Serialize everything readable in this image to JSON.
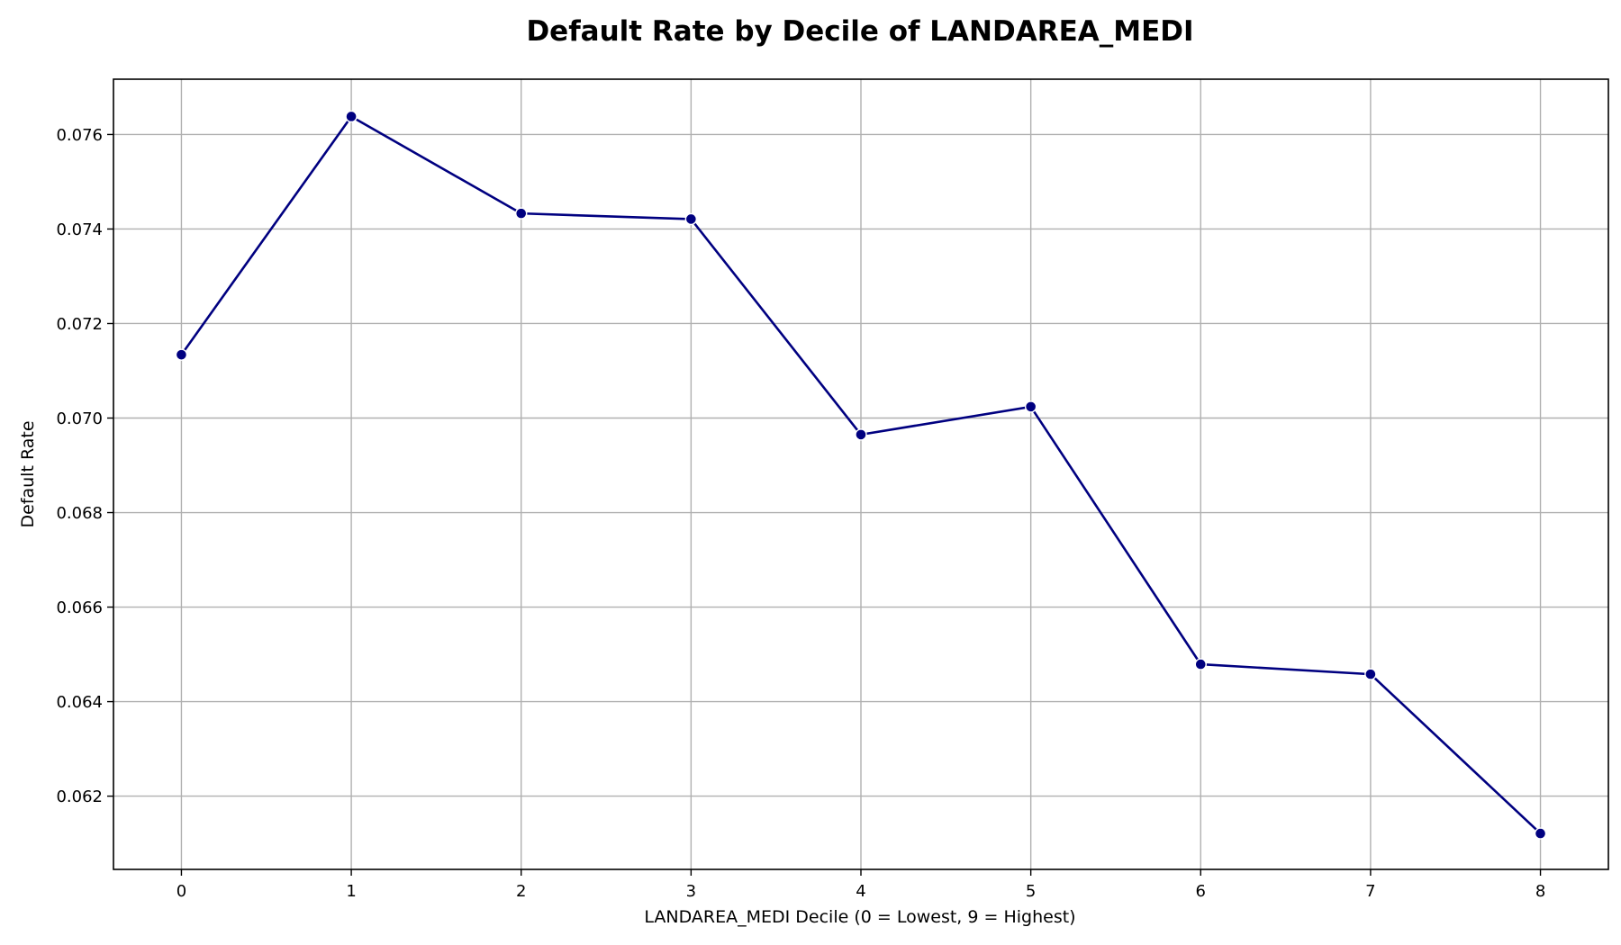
{
  "chart_data": {
    "type": "line",
    "title": "Default Rate by Decile of LANDAREA_MEDI",
    "xlabel": "LANDAREA_MEDI Decile (0 = Lowest, 9 = Highest)",
    "ylabel": "Default Rate",
    "x": [
      0,
      1,
      2,
      3,
      4,
      5,
      6,
      7,
      8
    ],
    "y": [
      0.07134,
      0.07638,
      0.07433,
      0.07421,
      0.06965,
      0.07024,
      0.06479,
      0.06458,
      0.06121
    ],
    "xlim": [
      -0.4,
      8.4
    ],
    "ylim": [
      0.06045,
      0.07717
    ],
    "xticks": [
      "0",
      "1",
      "2",
      "3",
      "4",
      "5",
      "6",
      "7",
      "8"
    ],
    "yticks": [
      "0.062",
      "0.064",
      "0.066",
      "0.068",
      "0.070",
      "0.072",
      "0.074",
      "0.076"
    ],
    "ytick_values": [
      0.062,
      0.064,
      0.066,
      0.068,
      0.07,
      0.072,
      0.074,
      0.076
    ],
    "grid": true,
    "legend": "none",
    "line_color": "#000080",
    "marker_color": "#000080",
    "grid_color": "#b0b0b0"
  }
}
